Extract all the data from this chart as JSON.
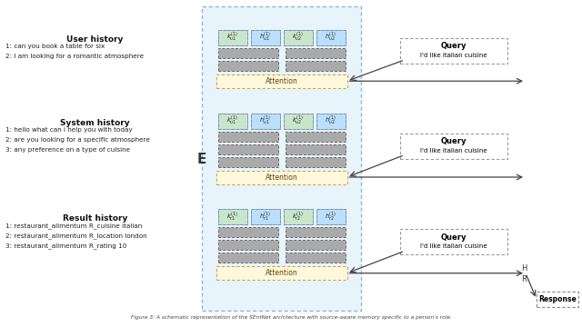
{
  "bg_color": "#ffffff",
  "panel_bg": "#e8f4fc",
  "panel_border": "#88bbdd",
  "green_color": "#c8e6c9",
  "blue_color": "#bbdefb",
  "gray_color": "#aaaaaa",
  "attention_color": "#fff8dc",
  "attention_border": "#ccaa44",
  "sections": [
    {
      "title": "User history",
      "lines": [
        "1: can you book a table for six",
        "2: I am looking for a romantic atmosphere"
      ],
      "key_labels": [
        "$k_{u1}^{(1)}$",
        "$h_{u1}^{(1)}$",
        "$k_{u2}^{(1)}$",
        "$h_{u2}^{(1)}$"
      ],
      "key_colors": [
        "#c8e6c9",
        "#bbdefb",
        "#c8e6c9",
        "#bbdefb"
      ],
      "num_gray_rows": 2
    },
    {
      "title": "System history",
      "lines": [
        "1: hello what can i help you with today",
        "2: are you looking for a specific atmosphere",
        "3: any preference on a type of cuisine"
      ],
      "key_labels": [
        "$k_{u1}^{(1)}$",
        "$h_{u1}^{(1)}$",
        "$k_{u2}^{(1)}$",
        "$h_{u2}^{(1)}$"
      ],
      "key_colors": [
        "#c8e6c9",
        "#bbdefb",
        "#c8e6c9",
        "#bbdefb"
      ],
      "num_gray_rows": 3
    },
    {
      "title": "Result history",
      "lines": [
        "1: restaurant_alimentum R_cuisine italian",
        "2: restaurant_alimentum R_location london",
        "3: restaurant_alimentum R_rating 10"
      ],
      "key_labels": [
        "$k_{r1}^{(1)}$",
        "$h_{r1}^{(1)}$",
        "$k_{r2}^{(1)}$",
        "$h_{r2}^{(1)}$"
      ],
      "key_colors": [
        "#c8e6c9",
        "#bbdefb",
        "#c8e6c9",
        "#bbdefb"
      ],
      "num_gray_rows": 3
    }
  ],
  "query_text_line1": "Query",
  "query_text_line2": "I'd like italian cuisine",
  "response_text": "Response",
  "e_label": "E",
  "h_label": "H",
  "r_label": "R",
  "caption": "Figure 3: A schematic representation of the SEntNet architecture with source-aware memory specific to a person's role."
}
